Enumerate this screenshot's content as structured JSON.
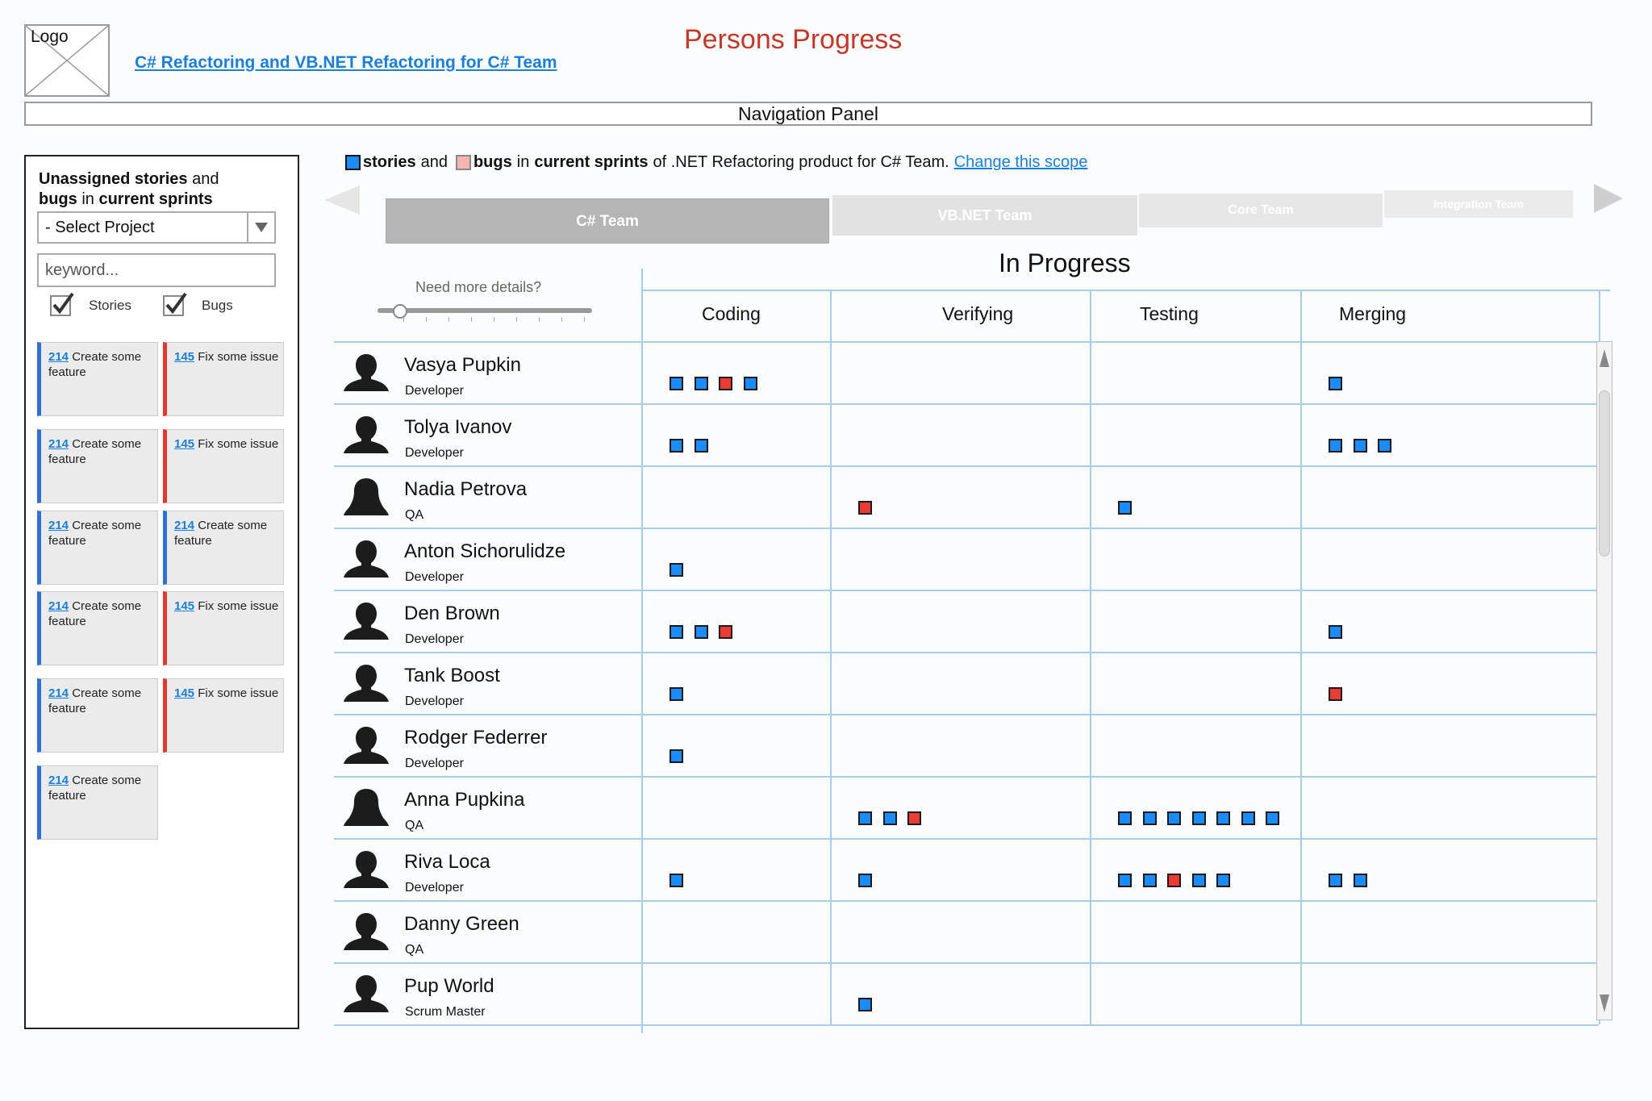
{
  "header": {
    "logo_label": "Logo",
    "project_link": "C# Refactoring and VB.NET Refactoring for C# Team",
    "page_title": "Persons Progress",
    "nav_panel": "Navigation Panel"
  },
  "left_panel": {
    "title_part1": "Unassigned stories",
    "title_part2": " and",
    "title_part3": "bugs",
    "title_part4": " in ",
    "title_part5": "current sprints",
    "select_value": "- Select Project",
    "keyword_placeholder": "keyword...",
    "checkbox_stories": "Stories",
    "checkbox_bugs": "Bugs",
    "cards": [
      {
        "type": "story",
        "num": "214",
        "text": "Create some feature"
      },
      {
        "type": "bug",
        "num": "145",
        "text": "Fix some issue"
      },
      {
        "type": "story",
        "num": "214",
        "text": "Create some feature"
      },
      {
        "type": "bug",
        "num": "145",
        "text": "Fix some issue"
      },
      {
        "type": "story",
        "num": "214",
        "text": "Create some feature"
      },
      {
        "type": "story",
        "num": "214",
        "text": "Create some feature"
      },
      {
        "type": "story",
        "num": "214",
        "text": "Create some feature"
      },
      {
        "type": "bug",
        "num": "145",
        "text": "Fix some issue"
      },
      {
        "type": "story",
        "num": "214",
        "text": "Create some feature"
      },
      {
        "type": "bug",
        "num": "145",
        "text": "Fix some issue"
      },
      {
        "type": "story",
        "num": "214",
        "text": "Create some feature"
      }
    ]
  },
  "scope": {
    "stories": "stories",
    "and": "and",
    "bugs": "bugs",
    "in": "in",
    "current_sprints": "current sprints",
    "rest": "of .NET Refactoring product for C# Team.",
    "change_link": "Change this scope"
  },
  "tabs": {
    "cs": "C# Team",
    "vb": "VB.NET Team",
    "core": "Core Team",
    "integration": "Integration Team"
  },
  "board": {
    "need_more": "Need more details?",
    "detail_level_percent": 10,
    "in_progress": "In Progress",
    "columns": [
      "Coding",
      "Verifying",
      "Testing",
      "Merging"
    ],
    "people": [
      {
        "name": "Vasya Pupkin",
        "role": "Developer",
        "avatar": "male",
        "cells": [
          "ssbs",
          "",
          "",
          "s"
        ]
      },
      {
        "name": "Tolya Ivanov",
        "role": "Developer",
        "avatar": "male",
        "cells": [
          "ss",
          "",
          "",
          "sss"
        ]
      },
      {
        "name": "Nadia Petrova",
        "role": "QA",
        "avatar": "female",
        "cells": [
          "",
          "b",
          "s",
          ""
        ]
      },
      {
        "name": "Anton Sichorulidze",
        "role": "Developer",
        "avatar": "male",
        "cells": [
          "s",
          "",
          "",
          ""
        ]
      },
      {
        "name": "Den Brown",
        "role": "Developer",
        "avatar": "male",
        "cells": [
          "ssb",
          "",
          "",
          "s"
        ]
      },
      {
        "name": "Tank Boost",
        "role": "Developer",
        "avatar": "male",
        "cells": [
          "s",
          "",
          "",
          "b"
        ]
      },
      {
        "name": "Rodger Federrer",
        "role": "Developer",
        "avatar": "male",
        "cells": [
          "s",
          "",
          "",
          ""
        ]
      },
      {
        "name": "Anna Pupkina",
        "role": "QA",
        "avatar": "female",
        "cells": [
          "",
          "ssb",
          "sssssss",
          ""
        ]
      },
      {
        "name": "Riva Loca",
        "role": "Developer",
        "avatar": "male",
        "cells": [
          "s",
          "s",
          "ssbss",
          "ss"
        ]
      },
      {
        "name": "Danny Green",
        "role": "QA",
        "avatar": "male",
        "cells": [
          "",
          "",
          "",
          ""
        ]
      },
      {
        "name": "Pup World",
        "role": "Scrum Master",
        "avatar": "male",
        "cells": [
          "",
          "s",
          "",
          ""
        ]
      }
    ]
  },
  "colors": {
    "title": "#c0392b",
    "link": "#1c7ed6",
    "story": "#1a8cff",
    "bug": "#ec3b34",
    "grid": "#a9cde8"
  }
}
